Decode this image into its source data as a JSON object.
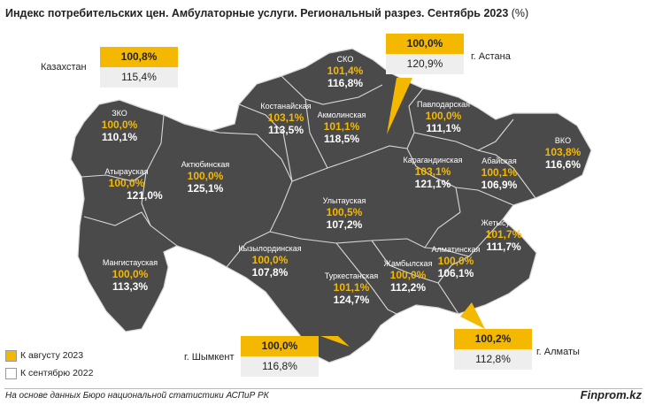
{
  "title": "Индекс потребительских цен. Амбулаторные услуги. Региональный разрез. Сентябрь 2023",
  "title_unit": "(%)",
  "colors": {
    "map_fill": "#4a4a4a",
    "border": "#d8d8d8",
    "accent": "#f5b800",
    "light_box": "#eeeeee"
  },
  "legend": [
    {
      "label": "К августу 2023",
      "color": "#f5b800"
    },
    {
      "label": "К сентябрю 2022",
      "color": "#ffffff"
    }
  ],
  "regions": {
    "zko": {
      "name": "ЗКО",
      "v_aug": "100,0%",
      "v_sep": "110,1%"
    },
    "atyrau": {
      "name": "Атырауская",
      "v_aug": "100,0%",
      "v_sep": "121,0%"
    },
    "mangystau": {
      "name": "Мангистауская",
      "v_aug": "100,0%",
      "v_sep": "113,3%"
    },
    "aktobe": {
      "name": "Актюбинская",
      "v_aug": "100,0%",
      "v_sep": "125,1%"
    },
    "kostanay": {
      "name": "Костанайская",
      "v_aug": "103,1%",
      "v_sep": "113,5%"
    },
    "sko": {
      "name": "СКО",
      "v_aug": "101,4%",
      "v_sep": "116,8%"
    },
    "akmola": {
      "name": "Акмолинская",
      "v_aug": "101,1%",
      "v_sep": "118,5%"
    },
    "pavlodar": {
      "name": "Павлодарская",
      "v_aug": "100,0%",
      "v_sep": "111,1%"
    },
    "vko": {
      "name": "ВКО",
      "v_aug": "103,8%",
      "v_sep": "116,6%"
    },
    "abai": {
      "name": "Абайская",
      "v_aug": "100,1%",
      "v_sep": "106,9%"
    },
    "karaganda": {
      "name": "Карагандинская",
      "v_aug": "103,1%",
      "v_sep": "121,1%"
    },
    "ulytau": {
      "name": "Улытауская",
      "v_aug": "100,5%",
      "v_sep": "107,2%"
    },
    "kyzylorda": {
      "name": "Кызылординская",
      "v_aug": "100,0%",
      "v_sep": "107,8%"
    },
    "turkestan": {
      "name": "Туркестанская",
      "v_aug": "101,1%",
      "v_sep": "124,7%"
    },
    "zhambyl": {
      "name": "Жамбылская",
      "v_aug": "100,0%",
      "v_sep": "112,2%"
    },
    "almaty_reg": {
      "name": "Алматинская",
      "v_aug": "100,0%",
      "v_sep": "106,1%"
    },
    "zhetysu": {
      "name": "Жетысуская",
      "v_aug": "101,7%",
      "v_sep": "111,7%"
    }
  },
  "callouts": {
    "kazakhstan": {
      "label": "Казахстан",
      "v_aug": "100,8%",
      "v_sep": "115,4%"
    },
    "astana": {
      "label": "г. Астана",
      "v_aug": "100,0%",
      "v_sep": "120,9%"
    },
    "shymkent": {
      "label": "г. Шымкент",
      "v_aug": "100,0%",
      "v_sep": "116,8%"
    },
    "almaty": {
      "label": "г. Алматы",
      "v_aug": "100,2%",
      "v_sep": "112,8%"
    }
  },
  "source": "На основе данных Бюро национальной статистики АСПиР РК",
  "brand": "Finprom.kz"
}
